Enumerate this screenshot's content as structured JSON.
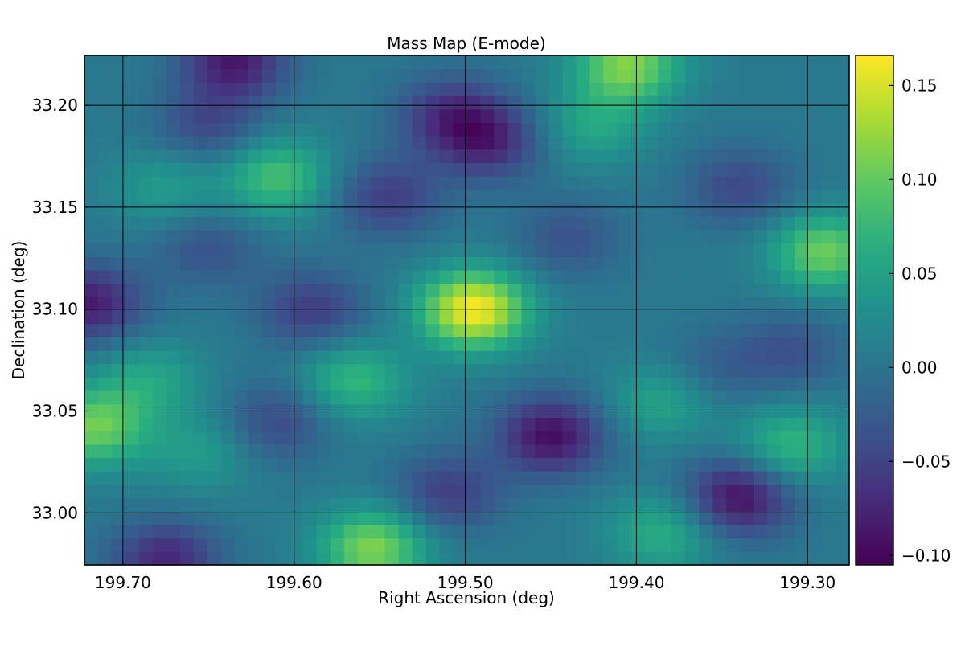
{
  "chart_data": {
    "type": "heatmap",
    "title": "Mass Map (E-mode)",
    "xlabel": "Right Ascension (deg)",
    "ylabel": "Declination (deg)",
    "x_inverted": true,
    "xlim": [
      199.7225,
      199.2757
    ],
    "ylim": [
      32.9745,
      33.2245
    ],
    "x_ticks": [
      199.7,
      199.6,
      199.5,
      199.4,
      199.3
    ],
    "x_tick_labels": [
      "199.70",
      "199.60",
      "199.50",
      "199.40",
      "199.30"
    ],
    "y_ticks": [
      33.0,
      33.05,
      33.1,
      33.15,
      33.2
    ],
    "y_tick_labels": [
      "33.00",
      "33.05",
      "33.10",
      "33.15",
      "33.20"
    ],
    "grid": true,
    "colormap": "viridis",
    "colorbar": {
      "vmin": -0.105,
      "vmax": 0.166,
      "ticks": [
        -0.1,
        -0.05,
        0.0,
        0.05,
        0.1,
        0.15
      ],
      "tick_labels": [
        "−0.10",
        "−0.05",
        "0.00",
        "0.05",
        "0.10",
        "0.15"
      ]
    },
    "peaks": [
      {
        "ra": 199.495,
        "dec": 33.1,
        "value": 0.16
      },
      {
        "ra": 199.405,
        "dec": 33.22,
        "value": 0.11
      },
      {
        "ra": 199.554,
        "dec": 32.983,
        "value": 0.11
      },
      {
        "ra": 199.717,
        "dec": 33.042,
        "value": 0.1
      },
      {
        "ra": 199.29,
        "dec": 33.128,
        "value": 0.1
      },
      {
        "ra": 199.61,
        "dec": 33.165,
        "value": 0.08
      },
      {
        "ra": 199.565,
        "dec": 33.065,
        "value": 0.07
      },
      {
        "ra": 199.31,
        "dec": 33.033,
        "value": 0.07
      },
      {
        "ra": 199.385,
        "dec": 32.99,
        "value": 0.06
      },
      {
        "ra": 199.425,
        "dec": 33.19,
        "value": 0.05
      },
      {
        "ra": 199.385,
        "dec": 33.055,
        "value": 0.05
      },
      {
        "ra": 199.685,
        "dec": 33.065,
        "value": 0.05
      },
      {
        "ra": 199.655,
        "dec": 33.03,
        "value": 0.04
      },
      {
        "ra": 199.675,
        "dec": 33.16,
        "value": 0.04
      },
      {
        "ra": 199.45,
        "dec": 33.038,
        "value": -0.1
      },
      {
        "ra": 199.34,
        "dec": 33.008,
        "value": -0.1
      },
      {
        "ra": 199.72,
        "dec": 33.103,
        "value": -0.09
      },
      {
        "ra": 199.635,
        "dec": 33.222,
        "value": -0.09
      },
      {
        "ra": 199.508,
        "dec": 33.195,
        "value": -0.07
      },
      {
        "ra": 199.485,
        "dec": 33.182,
        "value": -0.07
      },
      {
        "ra": 199.675,
        "dec": 32.977,
        "value": -0.08
      },
      {
        "ra": 199.59,
        "dec": 33.1,
        "value": -0.06
      },
      {
        "ra": 199.545,
        "dec": 33.155,
        "value": -0.06
      },
      {
        "ra": 199.51,
        "dec": 33.01,
        "value": -0.06
      },
      {
        "ra": 199.65,
        "dec": 33.19,
        "value": -0.05
      },
      {
        "ra": 199.34,
        "dec": 33.16,
        "value": -0.05
      },
      {
        "ra": 199.61,
        "dec": 33.045,
        "value": -0.05
      },
      {
        "ra": 199.44,
        "dec": 33.135,
        "value": -0.04
      },
      {
        "ra": 199.65,
        "dec": 33.13,
        "value": -0.04
      },
      {
        "ra": 199.31,
        "dec": 33.08,
        "value": -0.04
      },
      {
        "ra": 199.355,
        "dec": 33.07,
        "value": -0.03
      }
    ]
  }
}
